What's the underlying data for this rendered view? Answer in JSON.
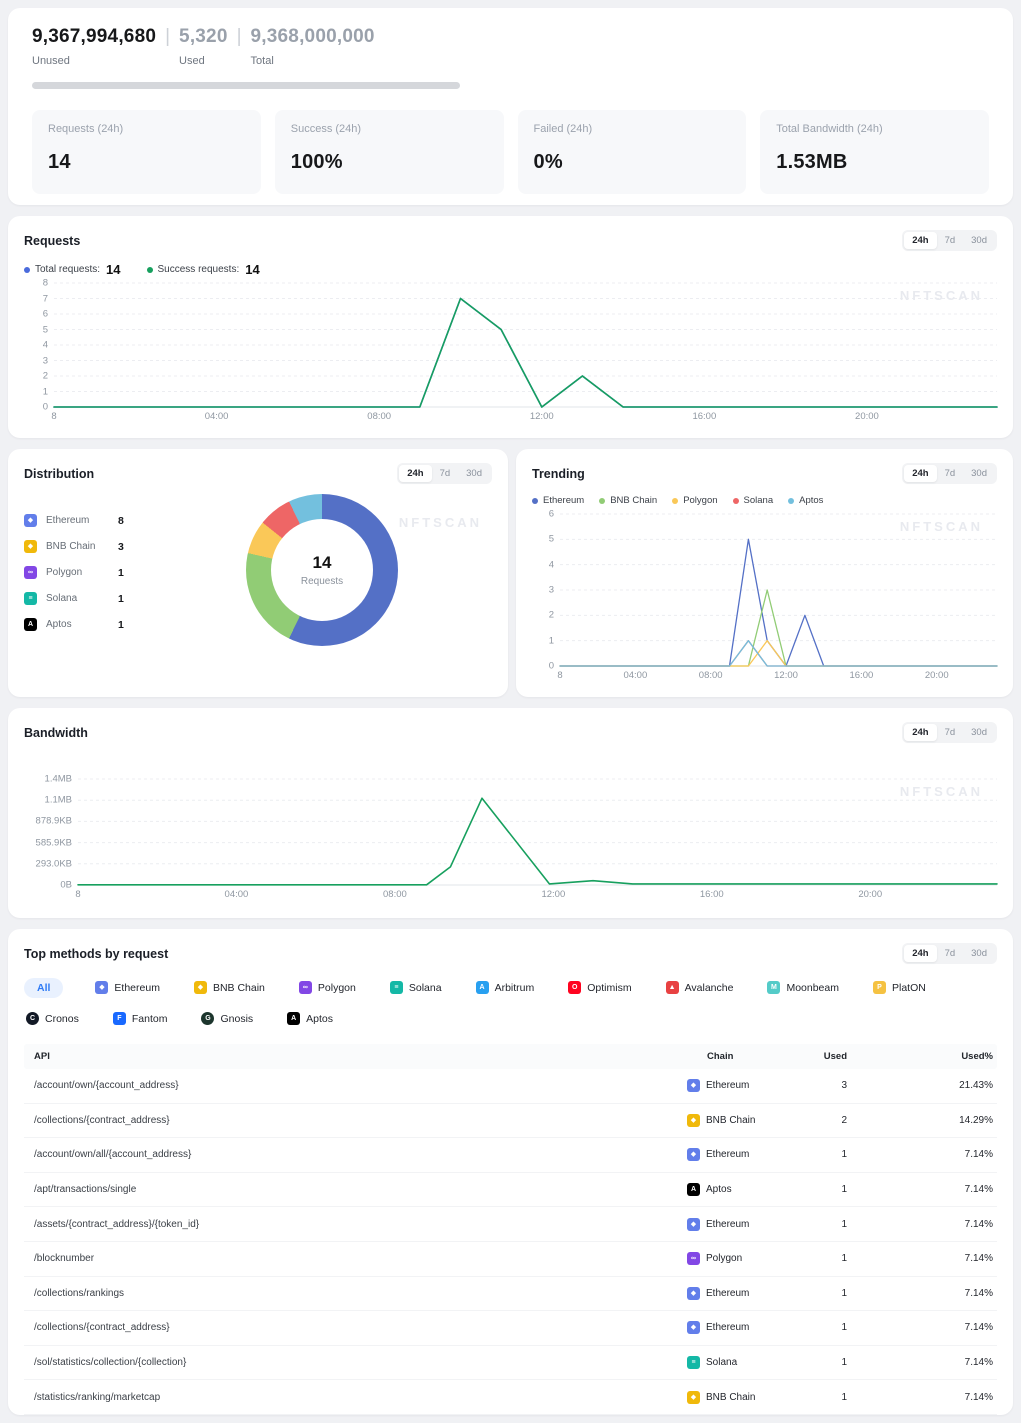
{
  "watermark": "NFTSCAN",
  "summary": {
    "unused_value": "9,367,994,680",
    "unused_label": "Unused",
    "used_value": "5,320",
    "used_label": "Used",
    "total_value": "9,368,000,000",
    "total_label": "Total",
    "separator": "|"
  },
  "stat_cards": [
    {
      "label": "Requests (24h)",
      "value": "14"
    },
    {
      "label": "Success (24h)",
      "value": "100%"
    },
    {
      "label": "Failed (24h)",
      "value": "0%"
    },
    {
      "label": "Total Bandwidth (24h)",
      "value": "1.53MB"
    }
  ],
  "time_ranges": {
    "options": [
      "24h",
      "7d",
      "30d"
    ],
    "selected": "24h"
  },
  "requests_panel": {
    "title": "Requests",
    "legend": [
      {
        "label": "Total requests:",
        "value": "14",
        "color": "#4a6bdc"
      },
      {
        "label": "Success requests:",
        "value": "14",
        "color": "#17a05e"
      }
    ]
  },
  "distribution_panel": {
    "title": "Distribution",
    "center_value": "14",
    "center_label": "Requests"
  },
  "trending_panel": {
    "title": "Trending"
  },
  "bandwidth_panel": {
    "title": "Bandwidth"
  },
  "chain_icons": {
    "ethereum": {
      "color": "#627eea",
      "glyph": "◆",
      "shape": "square"
    },
    "bnb": {
      "color": "#f0b90b",
      "glyph": "◆",
      "shape": "square"
    },
    "polygon": {
      "color": "#8247e5",
      "glyph": "∞",
      "shape": "square"
    },
    "solana": {
      "color": "#14b8a6",
      "glyph": "≡",
      "shape": "square"
    },
    "arbitrum": {
      "color": "#28a0f0",
      "glyph": "A",
      "shape": "square"
    },
    "optimism": {
      "color": "#ff0420",
      "glyph": "O",
      "shape": "square"
    },
    "avalanche": {
      "color": "#e84142",
      "glyph": "▲",
      "shape": "square"
    },
    "moonbeam": {
      "color": "#54cbc8",
      "glyph": "M",
      "shape": "square"
    },
    "platon": {
      "color": "#f5c242",
      "glyph": "P",
      "shape": "square"
    },
    "cronos": {
      "color": "#121926",
      "glyph": "C",
      "shape": "circle"
    },
    "fantom": {
      "color": "#1969ff",
      "glyph": "F",
      "shape": "square"
    },
    "gnosis": {
      "color": "#1c352d",
      "glyph": "G",
      "shape": "circle"
    },
    "aptos": {
      "color": "#000000",
      "glyph": "A",
      "shape": "square"
    }
  },
  "top_methods": {
    "title": "Top methods by request",
    "chips": [
      {
        "name": "All",
        "icon": null,
        "selected": true
      },
      {
        "name": "Ethereum",
        "icon": "ethereum"
      },
      {
        "name": "BNB Chain",
        "icon": "bnb"
      },
      {
        "name": "Polygon",
        "icon": "polygon"
      },
      {
        "name": "Solana",
        "icon": "solana"
      },
      {
        "name": "Arbitrum",
        "icon": "arbitrum"
      },
      {
        "name": "Optimism",
        "icon": "optimism"
      },
      {
        "name": "Avalanche",
        "icon": "avalanche"
      },
      {
        "name": "Moonbeam",
        "icon": "moonbeam"
      },
      {
        "name": "PlatON",
        "icon": "platon"
      },
      {
        "name": "Cronos",
        "icon": "cronos"
      },
      {
        "name": "Fantom",
        "icon": "fantom"
      },
      {
        "name": "Gnosis",
        "icon": "gnosis"
      },
      {
        "name": "Aptos",
        "icon": "aptos"
      }
    ],
    "table": {
      "headers": [
        "API",
        "Chain",
        "Used",
        "Used%"
      ],
      "rows": [
        {
          "api": "/account/own/{account_address}",
          "chain": "Ethereum",
          "chain_key": "ethereum",
          "used": "3",
          "used_pct": "21.43%"
        },
        {
          "api": "/collections/{contract_address}",
          "chain": "BNB Chain",
          "chain_key": "bnb",
          "used": "2",
          "used_pct": "14.29%"
        },
        {
          "api": "/account/own/all/{account_address}",
          "chain": "Ethereum",
          "chain_key": "ethereum",
          "used": "1",
          "used_pct": "7.14%"
        },
        {
          "api": "/apt/transactions/single",
          "chain": "Aptos",
          "chain_key": "aptos",
          "used": "1",
          "used_pct": "7.14%"
        },
        {
          "api": "/assets/{contract_address}/{token_id}",
          "chain": "Ethereum",
          "chain_key": "ethereum",
          "used": "1",
          "used_pct": "7.14%"
        },
        {
          "api": "/blocknumber",
          "chain": "Polygon",
          "chain_key": "polygon",
          "used": "1",
          "used_pct": "7.14%"
        },
        {
          "api": "/collections/rankings",
          "chain": "Ethereum",
          "chain_key": "ethereum",
          "used": "1",
          "used_pct": "7.14%"
        },
        {
          "api": "/collections/{contract_address}",
          "chain": "Ethereum",
          "chain_key": "ethereum",
          "used": "1",
          "used_pct": "7.14%"
        },
        {
          "api": "/sol/statistics/collection/{collection}",
          "chain": "Solana",
          "chain_key": "solana",
          "used": "1",
          "used_pct": "7.14%"
        },
        {
          "api": "/statistics/ranking/marketcap",
          "chain": "BNB Chain",
          "chain_key": "bnb",
          "used": "1",
          "used_pct": "7.14%"
        }
      ]
    }
  },
  "chart_data": [
    {
      "id": "requests",
      "type": "line",
      "title": "Requests (24h)",
      "x_tick_hours": [
        0,
        4,
        8,
        12,
        16,
        20
      ],
      "x_tick_labels": [
        "8",
        "04:00",
        "08:00",
        "12:00",
        "16:00",
        "20:00"
      ],
      "x_max_hour": 23.2,
      "y_ticks": [
        "0",
        "1",
        "2",
        "3",
        "4",
        "5",
        "6",
        "7",
        "8"
      ],
      "y_max": 8,
      "grid": true,
      "series": [
        {
          "name": "Total requests",
          "color": "#4a6bdc",
          "points": [
            [
              0,
              0
            ],
            [
              9,
              0
            ],
            [
              10,
              7
            ],
            [
              11,
              5
            ],
            [
              12,
              0
            ],
            [
              13,
              2
            ],
            [
              14,
              0
            ],
            [
              23.2,
              0
            ]
          ]
        },
        {
          "name": "Success requests",
          "color": "#17a05e",
          "points": [
            [
              0,
              0
            ],
            [
              9,
              0
            ],
            [
              10,
              7
            ],
            [
              11,
              5
            ],
            [
              12,
              0
            ],
            [
              13,
              2
            ],
            [
              14,
              0
            ],
            [
              23.2,
              0
            ]
          ]
        }
      ]
    },
    {
      "id": "trending",
      "type": "line",
      "title": "Trending by chain (24h)",
      "x_tick_hours": [
        0,
        4,
        8,
        12,
        16,
        20
      ],
      "x_tick_labels": [
        "8",
        "04:00",
        "08:00",
        "12:00",
        "16:00",
        "20:00"
      ],
      "x_max_hour": 23.2,
      "y_ticks": [
        "0",
        "1",
        "2",
        "3",
        "4",
        "5",
        "6"
      ],
      "y_max": 6,
      "grid": true,
      "legend_position": "top",
      "series": [
        {
          "name": "Ethereum",
          "color": "#5470c6",
          "points": [
            [
              0,
              0
            ],
            [
              9,
              0
            ],
            [
              10,
              5
            ],
            [
              11,
              1
            ],
            [
              12,
              0
            ],
            [
              13,
              2
            ],
            [
              14,
              0
            ],
            [
              23.2,
              0
            ]
          ]
        },
        {
          "name": "BNB Chain",
          "color": "#91cc75",
          "points": [
            [
              0,
              0
            ],
            [
              10,
              0
            ],
            [
              11,
              3
            ],
            [
              12,
              0
            ],
            [
              23.2,
              0
            ]
          ]
        },
        {
          "name": "Polygon",
          "color": "#fac858",
          "points": [
            [
              0,
              0
            ],
            [
              10,
              0
            ],
            [
              11,
              1
            ],
            [
              12,
              0
            ],
            [
              23.2,
              0
            ]
          ]
        },
        {
          "name": "Solana",
          "color": "#ee6666",
          "points": [
            [
              0,
              0
            ],
            [
              9,
              0
            ],
            [
              10,
              1
            ],
            [
              11,
              0
            ],
            [
              23.2,
              0
            ]
          ]
        },
        {
          "name": "Aptos",
          "color": "#73c0de",
          "points": [
            [
              0,
              0
            ],
            [
              9,
              0
            ],
            [
              10,
              1
            ],
            [
              11,
              0
            ],
            [
              23.2,
              0
            ]
          ]
        }
      ]
    },
    {
      "id": "bandwidth",
      "type": "line",
      "title": "Bandwidth (24h)",
      "x_tick_hours": [
        0,
        4,
        8,
        12,
        16,
        20
      ],
      "x_tick_labels": [
        "8",
        "04:00",
        "08:00",
        "12:00",
        "16:00",
        "20:00"
      ],
      "x_max_hour": 23.2,
      "y_ticks": [
        "0B",
        "293.0KB",
        "585.9KB",
        "878.9KB",
        "1.1MB",
        "1.4MB"
      ],
      "y_max": 1465,
      "y_unit": "KB",
      "grid": true,
      "series": [
        {
          "name": "Bandwidth",
          "color": "#17a05e",
          "points": [
            [
              0,
              3
            ],
            [
              8.8,
              3
            ],
            [
              9.4,
              250
            ],
            [
              10.2,
              1200
            ],
            [
              11.9,
              15
            ],
            [
              13,
              60
            ],
            [
              14,
              15
            ],
            [
              23.2,
              15
            ]
          ]
        }
      ]
    },
    {
      "id": "distribution",
      "type": "pie",
      "title": "Distribution (24h)",
      "center_value": "14",
      "center_label": "Requests",
      "slices": [
        {
          "name": "Ethereum",
          "value": 8,
          "color": "#5470c6",
          "icon": "ethereum"
        },
        {
          "name": "BNB Chain",
          "value": 3,
          "color": "#91cc75",
          "icon": "bnb"
        },
        {
          "name": "Polygon",
          "value": 1,
          "color": "#fac858",
          "icon": "polygon"
        },
        {
          "name": "Solana",
          "value": 1,
          "color": "#ee6666",
          "icon": "solana"
        },
        {
          "name": "Aptos",
          "value": 1,
          "color": "#73c0de",
          "icon": "aptos"
        }
      ]
    }
  ]
}
